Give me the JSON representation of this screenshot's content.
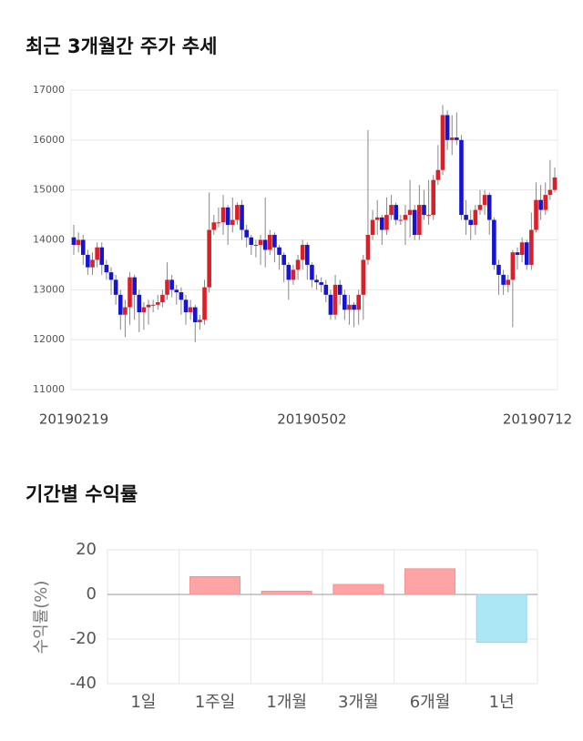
{
  "chart_data": [
    {
      "type": "candlestick",
      "title": "최근 3개월간 주가 추세",
      "categories": [
        "20190219",
        null,
        null,
        null,
        null,
        null,
        null,
        null,
        null,
        null,
        null,
        null,
        null,
        null,
        null,
        null,
        null,
        null,
        null,
        null,
        null,
        null,
        null,
        null,
        null,
        null,
        null,
        null,
        null,
        null,
        null,
        null,
        null,
        null,
        null,
        null,
        null,
        null,
        null,
        null,
        null,
        null,
        null,
        null,
        null,
        null,
        null,
        null,
        null,
        null,
        null,
        "20190502",
        null,
        null,
        null,
        null,
        null,
        null,
        null,
        null,
        null,
        null,
        null,
        null,
        null,
        null,
        null,
        null,
        null,
        null,
        null,
        null,
        null,
        null,
        null,
        null,
        null,
        null,
        null,
        null,
        null,
        null,
        null,
        null,
        null,
        null,
        null,
        null,
        null,
        null,
        null,
        null,
        null,
        null,
        null,
        null,
        null,
        null,
        null,
        null,
        null,
        null,
        null,
        "20190712"
      ],
      "open": [
        14050,
        13900,
        14000,
        13700,
        13450,
        13600,
        13850,
        13500,
        13350,
        13200,
        12900,
        12500,
        12650,
        13250,
        12900,
        12550,
        12650,
        12700,
        12700,
        12750,
        12900,
        13200,
        13000,
        12950,
        12800,
        12550,
        12650,
        12350,
        12400,
        13050,
        14200,
        14350,
        14350,
        14650,
        14300,
        14400,
        14700,
        14200,
        14050,
        13900,
        13900,
        14000,
        13800,
        14100,
        13850,
        13700,
        13500,
        13200,
        13400,
        13600,
        13900,
        13500,
        13200,
        13150,
        13100,
        12900,
        12500,
        13100,
        12900,
        12600,
        12700,
        12600,
        12900,
        13600,
        14100,
        14400,
        14450,
        14200,
        14500,
        14700,
        14400,
        14400,
        14500,
        14600,
        14100,
        14700,
        14500,
        14500,
        15200,
        15400,
        16500,
        16000,
        16050,
        16000,
        14500,
        14400,
        14300,
        14600,
        14700,
        14900,
        14400,
        13500,
        13300,
        13100,
        13200,
        13750,
        13700,
        13950,
        13500,
        14200,
        14800,
        14600,
        14900,
        15000
      ],
      "high": [
        14300,
        14150,
        14100,
        13800,
        13750,
        13950,
        13950,
        13600,
        13450,
        13300,
        13000,
        12800,
        13350,
        13300,
        13000,
        12750,
        12800,
        12800,
        12900,
        13000,
        13550,
        13300,
        13100,
        13050,
        12900,
        12800,
        12700,
        12500,
        13200,
        14950,
        14500,
        14650,
        14900,
        14700,
        14850,
        14750,
        14800,
        14300,
        14100,
        14000,
        14100,
        14850,
        14200,
        14150,
        13900,
        13750,
        13550,
        13500,
        13700,
        14000,
        13950,
        13550,
        13300,
        13250,
        13200,
        13000,
        13300,
        13200,
        13000,
        12900,
        12750,
        13000,
        13700,
        16200,
        14600,
        14800,
        14500,
        14850,
        14900,
        14750,
        14500,
        14700,
        15200,
        14700,
        15100,
        15000,
        15200,
        15300,
        15900,
        16700,
        16600,
        16500,
        16550,
        16100,
        14800,
        14600,
        14700,
        15000,
        15000,
        14950,
        14450,
        13600,
        13400,
        13300,
        13800,
        13850,
        14050,
        14000,
        14550,
        15150,
        15100,
        15150,
        15600,
        15450
      ],
      "low": [
        13700,
        13750,
        13500,
        13300,
        13300,
        13450,
        13300,
        13200,
        12900,
        12700,
        12200,
        12050,
        12300,
        12400,
        12150,
        12200,
        12300,
        12550,
        12600,
        12650,
        12800,
        12850,
        12700,
        12500,
        12300,
        12400,
        11950,
        12200,
        12300,
        12950,
        14100,
        14250,
        14100,
        13900,
        14150,
        14300,
        14000,
        13850,
        13700,
        13650,
        13500,
        13450,
        13700,
        13550,
        13400,
        13150,
        12800,
        13100,
        13200,
        13400,
        13200,
        13050,
        13000,
        12950,
        12750,
        12400,
        12400,
        12700,
        12400,
        12300,
        12250,
        12300,
        12400,
        13500,
        14000,
        14100,
        13900,
        14100,
        14400,
        14300,
        14300,
        13900,
        14050,
        14000,
        14000,
        14400,
        14300,
        14400,
        15100,
        15300,
        15800,
        15700,
        15900,
        14400,
        14100,
        14000,
        14100,
        14500,
        14500,
        14100,
        13400,
        12900,
        12900,
        12950,
        12250,
        13400,
        13550,
        13400,
        13400,
        14150,
        14400,
        14500,
        14800,
        14950
      ],
      "close": [
        13900,
        14000,
        13700,
        13450,
        13600,
        13850,
        13500,
        13350,
        13200,
        12900,
        12500,
        12650,
        13250,
        12900,
        12550,
        12650,
        12700,
        12700,
        12750,
        12900,
        13200,
        13000,
        12950,
        12800,
        12550,
        12650,
        12350,
        12400,
        13050,
        14200,
        14350,
        14350,
        14650,
        14300,
        14400,
        14700,
        14200,
        14050,
        13900,
        13900,
        14000,
        13800,
        14100,
        13850,
        13700,
        13500,
        13200,
        13400,
        13600,
        13900,
        13500,
        13200,
        13150,
        13100,
        12900,
        12500,
        13100,
        12900,
        12600,
        12700,
        12600,
        12900,
        13600,
        14100,
        14400,
        14450,
        14200,
        14500,
        14700,
        14400,
        14400,
        14500,
        14600,
        14100,
        14700,
        14500,
        14500,
        15200,
        15400,
        16500,
        16000,
        16050,
        16000,
        14500,
        14400,
        14300,
        14600,
        14700,
        14900,
        14400,
        13500,
        13300,
        13100,
        13200,
        13750,
        13700,
        13950,
        13500,
        14200,
        14800,
        14600,
        14900,
        15000,
        15250
      ],
      "up_color": "#dc1f26",
      "down_color": "#1414d2",
      "ylim": [
        11000,
        17000
      ],
      "yticks": [
        11000,
        12000,
        13000,
        14000,
        15000,
        16000,
        17000
      ],
      "grid": true
    },
    {
      "type": "bar",
      "title": "기간별 수익률",
      "ylabel": "수익률(%)",
      "categories": [
        "1일",
        "1주일",
        "1개월",
        "3개월",
        "6개월",
        "1년"
      ],
      "values": [
        0,
        8,
        1.5,
        4.5,
        11.5,
        -21.5
      ],
      "positive_color": "#ffa4a4",
      "negative_color": "#a9e8f4",
      "ylim": [
        -40,
        20
      ],
      "yticks": [
        20,
        0,
        -20,
        -40
      ],
      "grid": true
    }
  ]
}
